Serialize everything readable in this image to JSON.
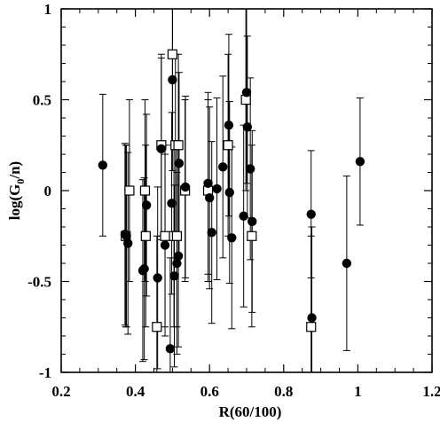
{
  "chart_data": {
    "type": "scatter",
    "xlabel": "R(60/100)",
    "ylabel": {
      "prefix": "log(G",
      "subscript": "0",
      "suffix": "/n)"
    },
    "xlim": [
      0.2,
      1.2
    ],
    "ylim": [
      -1,
      1
    ],
    "xticks": [
      "0.2",
      "0.4",
      "0.6",
      "0.8",
      "1",
      "1.2"
    ],
    "yticks": [
      "-1",
      "-0.5",
      "0",
      "0.5",
      "1"
    ],
    "grid": false,
    "series": [
      {
        "marker": "filled-circle",
        "color": "#000000",
        "points": [
          {
            "x": 0.312,
            "y": 0.14,
            "err": 0.39
          },
          {
            "x": 0.372,
            "y": -0.24,
            "err": 0.5
          },
          {
            "x": 0.376,
            "y": -0.25,
            "err": 0.5
          },
          {
            "x": 0.38,
            "y": -0.29,
            "err": 0.5
          },
          {
            "x": 0.42,
            "y": -0.44,
            "err": 0.5
          },
          {
            "x": 0.424,
            "y": -0.43,
            "err": 0.5
          },
          {
            "x": 0.43,
            "y": -0.08,
            "err": 0.5
          },
          {
            "x": 0.46,
            "y": -0.48,
            "err": 0.5
          },
          {
            "x": 0.47,
            "y": 0.23,
            "err": 0.5
          },
          {
            "x": 0.48,
            "y": -0.3,
            "err": 0.5
          },
          {
            "x": 0.494,
            "y": -0.87,
            "err": 0.5
          },
          {
            "x": 0.498,
            "y": -0.07,
            "err": 0.5
          },
          {
            "x": 0.5,
            "y": 0.61,
            "err": 0.5
          },
          {
            "x": 0.505,
            "y": -0.47,
            "err": 0.5
          },
          {
            "x": 0.512,
            "y": -0.4,
            "err": 0.5
          },
          {
            "x": 0.516,
            "y": -0.36,
            "err": 0.5
          },
          {
            "x": 0.518,
            "y": 0.15,
            "err": 0.5
          },
          {
            "x": 0.535,
            "y": 0.02,
            "err": 0.5
          },
          {
            "x": 0.596,
            "y": 0.04,
            "err": 0.5
          },
          {
            "x": 0.6,
            "y": -0.04,
            "err": 0.5
          },
          {
            "x": 0.606,
            "y": -0.23,
            "err": 0.5
          },
          {
            "x": 0.62,
            "y": 0.01,
            "err": 0.5
          },
          {
            "x": 0.636,
            "y": 0.13,
            "err": 0.5
          },
          {
            "x": 0.652,
            "y": 0.36,
            "err": 0.5
          },
          {
            "x": 0.654,
            "y": -0.01,
            "err": 0.5
          },
          {
            "x": 0.66,
            "y": -0.26,
            "err": 0.5
          },
          {
            "x": 0.692,
            "y": -0.14,
            "err": 0.5
          },
          {
            "x": 0.7,
            "y": 0.54,
            "err": 0.5
          },
          {
            "x": 0.702,
            "y": 0.35,
            "err": 0.5
          },
          {
            "x": 0.71,
            "y": 0.12,
            "err": 0.5
          },
          {
            "x": 0.715,
            "y": -0.17,
            "err": 0.5
          },
          {
            "x": 0.874,
            "y": -0.13,
            "err": 0.35
          },
          {
            "x": 0.876,
            "y": -0.7,
            "err": 0.5
          },
          {
            "x": 0.97,
            "y": -0.4,
            "err": 0.48
          },
          {
            "x": 1.006,
            "y": 0.16,
            "err": 0.35
          }
        ]
      },
      {
        "marker": "open-square",
        "color": "#000000",
        "points": [
          {
            "x": 0.374,
            "y": -0.25,
            "err": 0.5
          },
          {
            "x": 0.384,
            "y": 0.0,
            "err": 0.5
          },
          {
            "x": 0.426,
            "y": 0.0,
            "err": 0.5
          },
          {
            "x": 0.428,
            "y": -0.25,
            "err": 0.5
          },
          {
            "x": 0.458,
            "y": -0.75,
            "err": 0.5
          },
          {
            "x": 0.47,
            "y": 0.25,
            "err": 0.5
          },
          {
            "x": 0.48,
            "y": -0.25,
            "err": 0.5
          },
          {
            "x": 0.5,
            "y": 0.75,
            "err": 0.5
          },
          {
            "x": 0.504,
            "y": -0.25,
            "err": 0.5
          },
          {
            "x": 0.508,
            "y": 0.25,
            "err": 0.5
          },
          {
            "x": 0.512,
            "y": -0.25,
            "err": 0.5
          },
          {
            "x": 0.516,
            "y": 0.25,
            "err": 0.5
          },
          {
            "x": 0.534,
            "y": 0.0,
            "err": 0.5
          },
          {
            "x": 0.596,
            "y": 0.0,
            "err": 0.5
          },
          {
            "x": 0.65,
            "y": 0.25,
            "err": 0.5
          },
          {
            "x": 0.698,
            "y": 0.5,
            "err": 0.5
          },
          {
            "x": 0.714,
            "y": -0.25,
            "err": 0.5
          },
          {
            "x": 0.874,
            "y": -0.75,
            "err": 0.5
          }
        ]
      }
    ]
  }
}
